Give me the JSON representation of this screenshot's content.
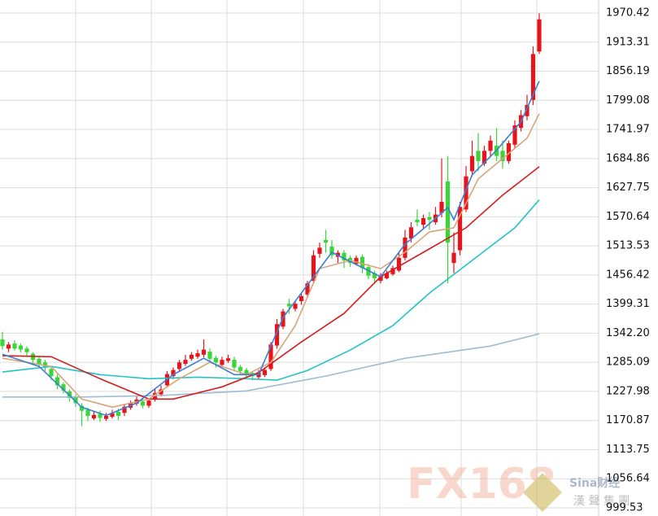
{
  "chart_data": {
    "type": "candlestick",
    "up_color": "#e8141c",
    "down_color": "#38d638",
    "grid": true,
    "ylim": [
      983.56,
      1995.97
    ],
    "yticks": [
      1970.42,
      1913.31,
      1856.19,
      1799.08,
      1741.97,
      1684.86,
      1627.75,
      1570.64,
      1513.53,
      1456.42,
      1399.31,
      {
        "value": 1342.2,
        "label": "1342.20"
      },
      1285.09,
      1227.98,
      1170.87,
      1113.75,
      1056.64,
      999.53
    ],
    "open": [
      1330,
      1312,
      1322,
      1318,
      1312,
      1302,
      1292,
      1285,
      1272,
      1256,
      1242,
      1228,
      1218,
      1200,
      1192,
      1175,
      1184,
      1174,
      1178,
      1188,
      1186,
      1196,
      1204,
      1208,
      1200,
      1212,
      1222,
      1240,
      1258,
      1272,
      1282,
      1292,
      1296,
      1300,
      1306,
      1294,
      1280,
      1288,
      1290,
      1276,
      1270,
      1264,
      1256,
      1260,
      1272,
      1318,
      1355,
      1400,
      1390,
      1405,
      1418,
      1445,
      1498,
      1525,
      1512,
      1492,
      1500,
      1490,
      1478,
      1492,
      1472,
      1460,
      1445,
      1450,
      1458,
      1465,
      1490,
      1528,
      1565,
      1555,
      1570,
      1560,
      1578,
      1640,
      1480,
      1505,
      1585,
      1660,
      1700,
      1675,
      1700,
      1710,
      1700,
      1680,
      1712,
      1745,
      1768,
      1800,
      1895
    ],
    "high": [
      1345,
      1325,
      1328,
      1322,
      1316,
      1305,
      1295,
      1290,
      1276,
      1262,
      1246,
      1232,
      1222,
      1205,
      1196,
      1190,
      1190,
      1186,
      1192,
      1194,
      1202,
      1210,
      1218,
      1215,
      1214,
      1232,
      1240,
      1268,
      1275,
      1290,
      1300,
      1305,
      1310,
      1330,
      1312,
      1298,
      1296,
      1300,
      1296,
      1280,
      1274,
      1268,
      1270,
      1275,
      1325,
      1370,
      1390,
      1410,
      1405,
      1420,
      1445,
      1505,
      1520,
      1545,
      1525,
      1505,
      1505,
      1495,
      1495,
      1497,
      1478,
      1465,
      1460,
      1465,
      1475,
      1500,
      1545,
      1560,
      1585,
      1575,
      1580,
      1590,
      1685,
      1690,
      1540,
      1600,
      1670,
      1720,
      1735,
      1710,
      1730,
      1745,
      1720,
      1720,
      1760,
      1780,
      1810,
      1905,
      1970
    ],
    "low": [
      1310,
      1305,
      1308,
      1304,
      1298,
      1284,
      1276,
      1268,
      1250,
      1232,
      1224,
      1208,
      1198,
      1160,
      1170,
      1172,
      1168,
      1170,
      1175,
      1172,
      1180,
      1192,
      1200,
      1195,
      1196,
      1208,
      1218,
      1236,
      1252,
      1268,
      1278,
      1288,
      1292,
      1295,
      1285,
      1275,
      1276,
      1284,
      1270,
      1262,
      1256,
      1250,
      1252,
      1256,
      1268,
      1312,
      1350,
      1380,
      1385,
      1398,
      1412,
      1440,
      1490,
      1500,
      1488,
      1480,
      1470,
      1472,
      1475,
      1460,
      1448,
      1440,
      1440,
      1448,
      1455,
      1462,
      1485,
      1520,
      1552,
      1548,
      1545,
      1555,
      1570,
      1440,
      1460,
      1495,
      1580,
      1650,
      1660,
      1670,
      1690,
      1680,
      1665,
      1675,
      1705,
      1738,
      1760,
      1790,
      1890
    ],
    "close": [
      1317,
      1320,
      1312,
      1310,
      1305,
      1290,
      1282,
      1275,
      1258,
      1240,
      1230,
      1215,
      1205,
      1190,
      1180,
      1182,
      1176,
      1180,
      1185,
      1180,
      1198,
      1205,
      1212,
      1200,
      1210,
      1225,
      1232,
      1262,
      1270,
      1285,
      1290,
      1300,
      1303,
      1310,
      1292,
      1285,
      1290,
      1293,
      1275,
      1268,
      1262,
      1258,
      1265,
      1270,
      1320,
      1360,
      1385,
      1395,
      1400,
      1415,
      1440,
      1495,
      1510,
      1520,
      1495,
      1500,
      1485,
      1480,
      1490,
      1470,
      1455,
      1450,
      1455,
      1460,
      1470,
      1490,
      1530,
      1550,
      1560,
      1568,
      1565,
      1575,
      1600,
      1520,
      1500,
      1590,
      1650,
      1690,
      1680,
      1700,
      1720,
      1690,
      1680,
      1715,
      1750,
      1770,
      1790,
      1890,
      1958
    ],
    "lines": [
      {
        "color": "#9dbdd2",
        "x": [
          0,
          13,
          26,
          40,
          53,
          66,
          80,
          88
        ],
        "values": [
          1217,
          1217,
          1220,
          1229,
          1258,
          1293,
          1317,
          1341
        ]
      },
      {
        "color": "#22c4c4",
        "x": [
          0,
          8,
          16,
          24,
          32,
          40,
          45,
          50,
          57,
          64,
          70,
          77,
          84,
          88
        ],
        "values": [
          1266,
          1277,
          1261,
          1253,
          1256,
          1253,
          1250,
          1269,
          1309,
          1357,
          1421,
          1485,
          1549,
          1604
        ]
      },
      {
        "color": "#d41e1e",
        "x": [
          0,
          8,
          16,
          24,
          28,
          36,
          42,
          49,
          56,
          62,
          69,
          76,
          82,
          88
        ],
        "values": [
          1298,
          1296,
          1253,
          1213,
          1213,
          1237,
          1265,
          1325,
          1381,
          1453,
          1501,
          1549,
          1613,
          1669
        ]
      },
      {
        "color": "#d9a47a",
        "x": [
          0,
          8,
          13,
          18,
          24,
          29,
          34,
          40,
          44,
          48,
          52,
          57,
          62,
          66,
          70,
          74,
          78,
          82,
          86,
          88
        ],
        "values": [
          1293,
          1277,
          1213,
          1197,
          1213,
          1253,
          1285,
          1261,
          1285,
          1357,
          1469,
          1485,
          1469,
          1501,
          1541,
          1549,
          1645,
          1685,
          1725,
          1773
        ]
      },
      {
        "color": "#3a7fd5",
        "x": [
          0,
          6,
          13,
          17,
          22,
          28,
          33,
          38,
          42,
          46,
          51,
          54,
          58,
          62,
          66,
          70,
          73,
          74,
          77,
          81,
          85,
          88
        ],
        "values": [
          1301,
          1277,
          1197,
          1181,
          1205,
          1261,
          1293,
          1261,
          1261,
          1373,
          1453,
          1501,
          1477,
          1453,
          1517,
          1557,
          1589,
          1565,
          1653,
          1701,
          1757,
          1837
        ]
      }
    ],
    "watermark": {
      "logo": "FX168",
      "partner": "Sina财经",
      "tagline": "漢 聲 集 團"
    }
  }
}
